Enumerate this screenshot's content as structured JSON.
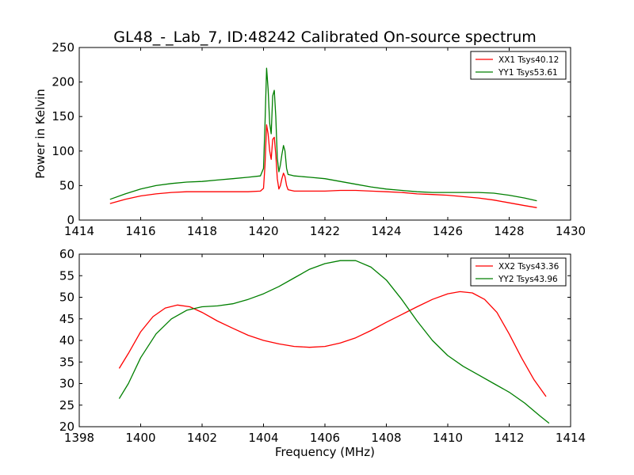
{
  "title": "GL48_-_Lab_7, ID:48242 Calibrated On-source spectrum",
  "colors": {
    "red": "#ff0000",
    "green": "#007f00"
  },
  "chart_data": [
    {
      "type": "line",
      "title": "GL48_-_Lab_7, ID:48242 Calibrated On-source spectrum",
      "xlabel": "",
      "ylabel": "Power in Kelvin",
      "xlim": [
        1414,
        1430
      ],
      "ylim": [
        0,
        250
      ],
      "xticks": [
        1414,
        1416,
        1418,
        1420,
        1422,
        1424,
        1426,
        1428,
        1430
      ],
      "yticks": [
        0,
        50,
        100,
        150,
        200,
        250
      ],
      "grid": false,
      "legend_position": "top-right",
      "series": [
        {
          "name": "XX1 Tsys40.12",
          "color": "#ff0000",
          "x": [
            1415.0,
            1415.5,
            1416.0,
            1416.5,
            1417.0,
            1417.5,
            1418.0,
            1418.5,
            1419.0,
            1419.5,
            1419.9,
            1420.0,
            1420.05,
            1420.1,
            1420.15,
            1420.2,
            1420.25,
            1420.3,
            1420.35,
            1420.4,
            1420.45,
            1420.5,
            1420.55,
            1420.6,
            1420.65,
            1420.7,
            1420.75,
            1420.8,
            1420.9,
            1421.0,
            1421.5,
            1422.0,
            1422.5,
            1423.0,
            1423.5,
            1424.0,
            1424.5,
            1425.0,
            1425.5,
            1426.0,
            1426.5,
            1427.0,
            1427.5,
            1428.0,
            1428.5,
            1428.9
          ],
          "values": [
            24,
            30,
            35,
            38,
            40,
            41,
            41,
            41,
            41,
            41,
            42,
            46,
            80,
            138,
            125,
            100,
            88,
            117,
            120,
            95,
            60,
            45,
            50,
            60,
            68,
            63,
            50,
            44,
            43,
            42,
            42,
            42,
            43,
            43,
            42,
            41,
            40,
            38,
            37,
            36,
            34,
            32,
            29,
            25,
            21,
            18
          ]
        },
        {
          "name": "YY1 Tsys53.61",
          "color": "#007f00",
          "x": [
            1415.0,
            1415.5,
            1416.0,
            1416.5,
            1417.0,
            1417.5,
            1418.0,
            1418.5,
            1419.0,
            1419.5,
            1419.9,
            1420.0,
            1420.05,
            1420.1,
            1420.15,
            1420.2,
            1420.25,
            1420.3,
            1420.35,
            1420.4,
            1420.45,
            1420.5,
            1420.55,
            1420.6,
            1420.65,
            1420.7,
            1420.75,
            1420.8,
            1420.9,
            1421.0,
            1421.5,
            1422.0,
            1422.5,
            1423.0,
            1423.5,
            1424.0,
            1424.5,
            1425.0,
            1425.5,
            1426.0,
            1426.5,
            1427.0,
            1427.5,
            1428.0,
            1428.5,
            1428.9
          ],
          "values": [
            30,
            38,
            45,
            50,
            53,
            55,
            56,
            58,
            60,
            62,
            64,
            75,
            140,
            220,
            190,
            140,
            125,
            180,
            188,
            150,
            90,
            70,
            80,
            95,
            108,
            100,
            75,
            66,
            65,
            64,
            62,
            60,
            56,
            52,
            48,
            45,
            43,
            41,
            40,
            40,
            40,
            40,
            39,
            36,
            32,
            28
          ]
        }
      ]
    },
    {
      "type": "line",
      "title": "",
      "xlabel": "Frequency (MHz)",
      "ylabel": "",
      "xlim": [
        1398,
        1414
      ],
      "ylim": [
        20,
        60
      ],
      "xticks": [
        1398,
        1400,
        1402,
        1404,
        1406,
        1408,
        1410,
        1412,
        1414
      ],
      "yticks": [
        20,
        25,
        30,
        35,
        40,
        45,
        50,
        55,
        60
      ],
      "grid": false,
      "legend_position": "top-right",
      "series": [
        {
          "name": "XX2 Tsys43.36",
          "color": "#ff0000",
          "x": [
            1399.3,
            1399.6,
            1400.0,
            1400.4,
            1400.8,
            1401.2,
            1401.6,
            1402.0,
            1402.5,
            1403.0,
            1403.5,
            1404.0,
            1404.5,
            1405.0,
            1405.5,
            1406.0,
            1406.5,
            1407.0,
            1407.5,
            1408.0,
            1408.5,
            1409.0,
            1409.5,
            1410.0,
            1410.4,
            1410.8,
            1411.2,
            1411.6,
            1412.0,
            1412.4,
            1412.8,
            1413.2
          ],
          "values": [
            33.5,
            37,
            42,
            45.5,
            47.5,
            48.2,
            47.8,
            46.5,
            44.5,
            42.8,
            41.2,
            40,
            39.2,
            38.6,
            38.4,
            38.6,
            39.4,
            40.6,
            42.3,
            44.2,
            46,
            47.8,
            49.5,
            50.8,
            51.3,
            51,
            49.5,
            46.5,
            41.5,
            36,
            31,
            27
          ]
        },
        {
          "name": "YY2 Tsys43.96",
          "color": "#007f00",
          "x": [
            1399.3,
            1399.6,
            1400.0,
            1400.5,
            1401.0,
            1401.5,
            1402.0,
            1402.5,
            1403.0,
            1403.5,
            1404.0,
            1404.5,
            1405.0,
            1405.5,
            1406.0,
            1406.5,
            1407.0,
            1407.5,
            1408.0,
            1408.5,
            1409.0,
            1409.5,
            1410.0,
            1410.5,
            1411.0,
            1411.5,
            1412.0,
            1412.5,
            1413.0,
            1413.3
          ],
          "values": [
            26.5,
            30,
            36,
            41.5,
            45,
            47,
            47.8,
            48,
            48.5,
            49.5,
            50.8,
            52.5,
            54.5,
            56.5,
            57.8,
            58.5,
            58.5,
            57,
            54,
            49.5,
            44.5,
            40,
            36.5,
            34,
            32,
            30,
            28,
            25.5,
            22.5,
            20.8
          ]
        }
      ]
    }
  ]
}
